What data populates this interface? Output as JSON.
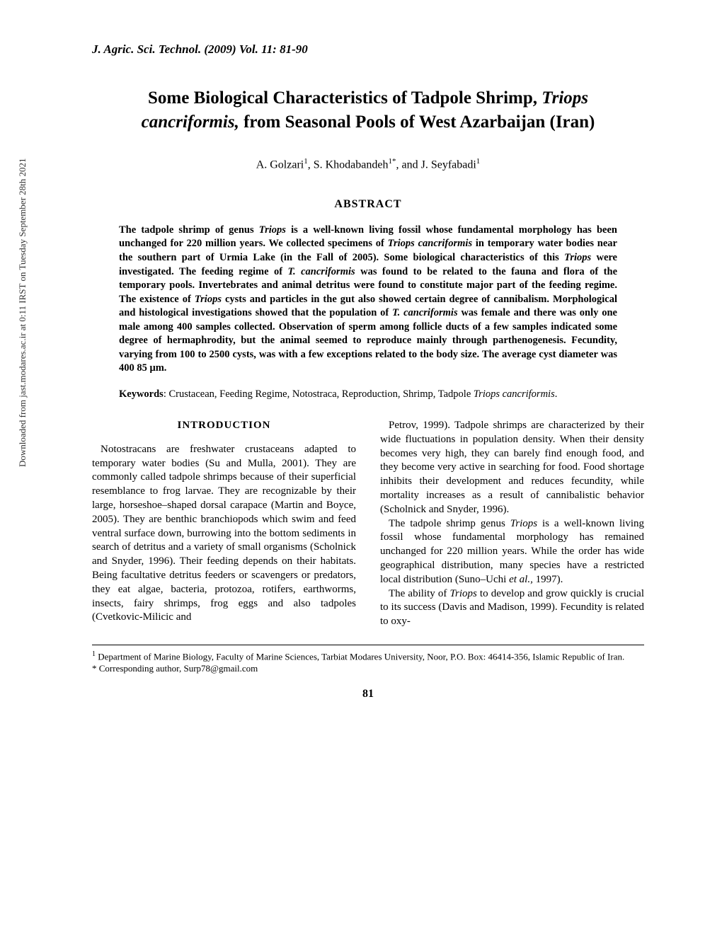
{
  "sidebar": {
    "download_note": "Downloaded from jast.modares.ac.ir at 0:11 IRST on Tuesday September 28th 2021"
  },
  "header": {
    "journal": "J. Agric. Sci. Technol. (2009) Vol. 11: 81-90"
  },
  "title": {
    "line1": "Some Biological Characteristics of Tadpole Shrimp, ",
    "species1": "Triops cancriformis,",
    "line2": " from Seasonal Pools of West Azarbaijan (Iran)"
  },
  "authors": {
    "a1": "A. Golzari",
    "a1_sup": "1",
    "a2": "S. Khodabandeh",
    "a2_sup": "1*",
    "a3": "J. Seyfabadi",
    "a3_sup": "1"
  },
  "abstract": {
    "heading": "ABSTRACT",
    "body_pre": "The tadpole shrimp of genus ",
    "sp1": "Triops",
    "body_1": " is a well-known living fossil whose fundamental morphology has been unchanged for 220 million years. We collected specimens of ",
    "sp2": "Triops cancriformis",
    "body_2": " in temporary water bodies near the southern part of Urmia Lake (in the Fall of 2005). Some biological characteristics of this ",
    "sp3": "Triops",
    "body_3": " were investigated. The feeding regime of ",
    "sp4": "T. cancriformis",
    "body_4": " was found to be related to the fauna and flora of the temporary pools. Invertebrates and animal detritus were found to constitute major part of the feeding regime. The existence of ",
    "sp5": "Triops",
    "body_5": " cysts and particles in the gut also showed certain degree of cannibalism. Morphological and histological investigations showed that the population of ",
    "sp6": "T. cancriformis",
    "body_6": " was female and there was only one male among 400 samples collected. Observation of sperm among follicle ducts of a few samples indicated some degree of hermaphrodity, but the animal seemed to reproduce mainly through parthenogenesis. Fecundity, varying from 100 to 2500 cysts, was with a few exceptions related to the body size. The average cyst diameter was 400  85 μm."
  },
  "keywords": {
    "label": "Keywords",
    "text": ": Crustacean, Feeding Regime, Notostraca, Reproduction, Shrimp, Tadpole ",
    "species": "Triops cancriformis",
    "tail": "."
  },
  "intro": {
    "heading": "INTRODUCTION",
    "col_left": "Notostracans are freshwater crustaceans adapted to temporary water bodies (Su and Mulla, 2001). They are commonly called tadpole shrimps because of their superficial resemblance to frog larvae. They are recognizable by their large, horseshoe–shaped dorsal carapace (Martin and Boyce, 2005). They are benthic branchiopods which swim and feed ventral surface down, burrowing into the bottom sediments in search of detritus and a variety of small organisms (Scholnick and Snyder, 1996). Their feeding depends on their habitats. Being facultative detritus feeders or scavengers or predators, they eat algae, bacteria, protozoa, rotifers, earthworms, insects, fairy shrimps, frog eggs and also tadpoles (Cvetkovic-Milicic and",
    "col_right_p1": "Petrov, 1999). Tadpole shrimps are characterized by their wide fluctuations in population density. When their density becomes very high, they can barely find enough food, and they become very active in searching for food. Food shortage inhibits their development and reduces fecundity, while mortality increases as a result of cannibalistic behavior (Scholnick and Snyder, 1996).",
    "col_right_p2a": "The tadpole shrimp genus ",
    "col_right_sp1": "Triops",
    "col_right_p2b": " is a well-known living fossil whose fundamental morphology has remained unchanged for 220 million years. While the order has wide geographical distribution, many species have a restricted local distribution (Suno–Uchi ",
    "col_right_sp2": "et al.,",
    "col_right_p2c": " 1997).",
    "col_right_p3a": "The ability of ",
    "col_right_sp3": "Triops",
    "col_right_p3b": " to develop and grow quickly is crucial to its success (Davis and Madison, 1999). Fecundity is related to oxy-"
  },
  "footnotes": {
    "f1": "Department of Marine Biology, Faculty of Marine Sciences, Tarbiat Modares University, Noor, P.O. Box: 46414-356, Islamic Republic of Iran.",
    "f2": "* Corresponding author, Surp78@gmail.com"
  },
  "page_number": "81"
}
